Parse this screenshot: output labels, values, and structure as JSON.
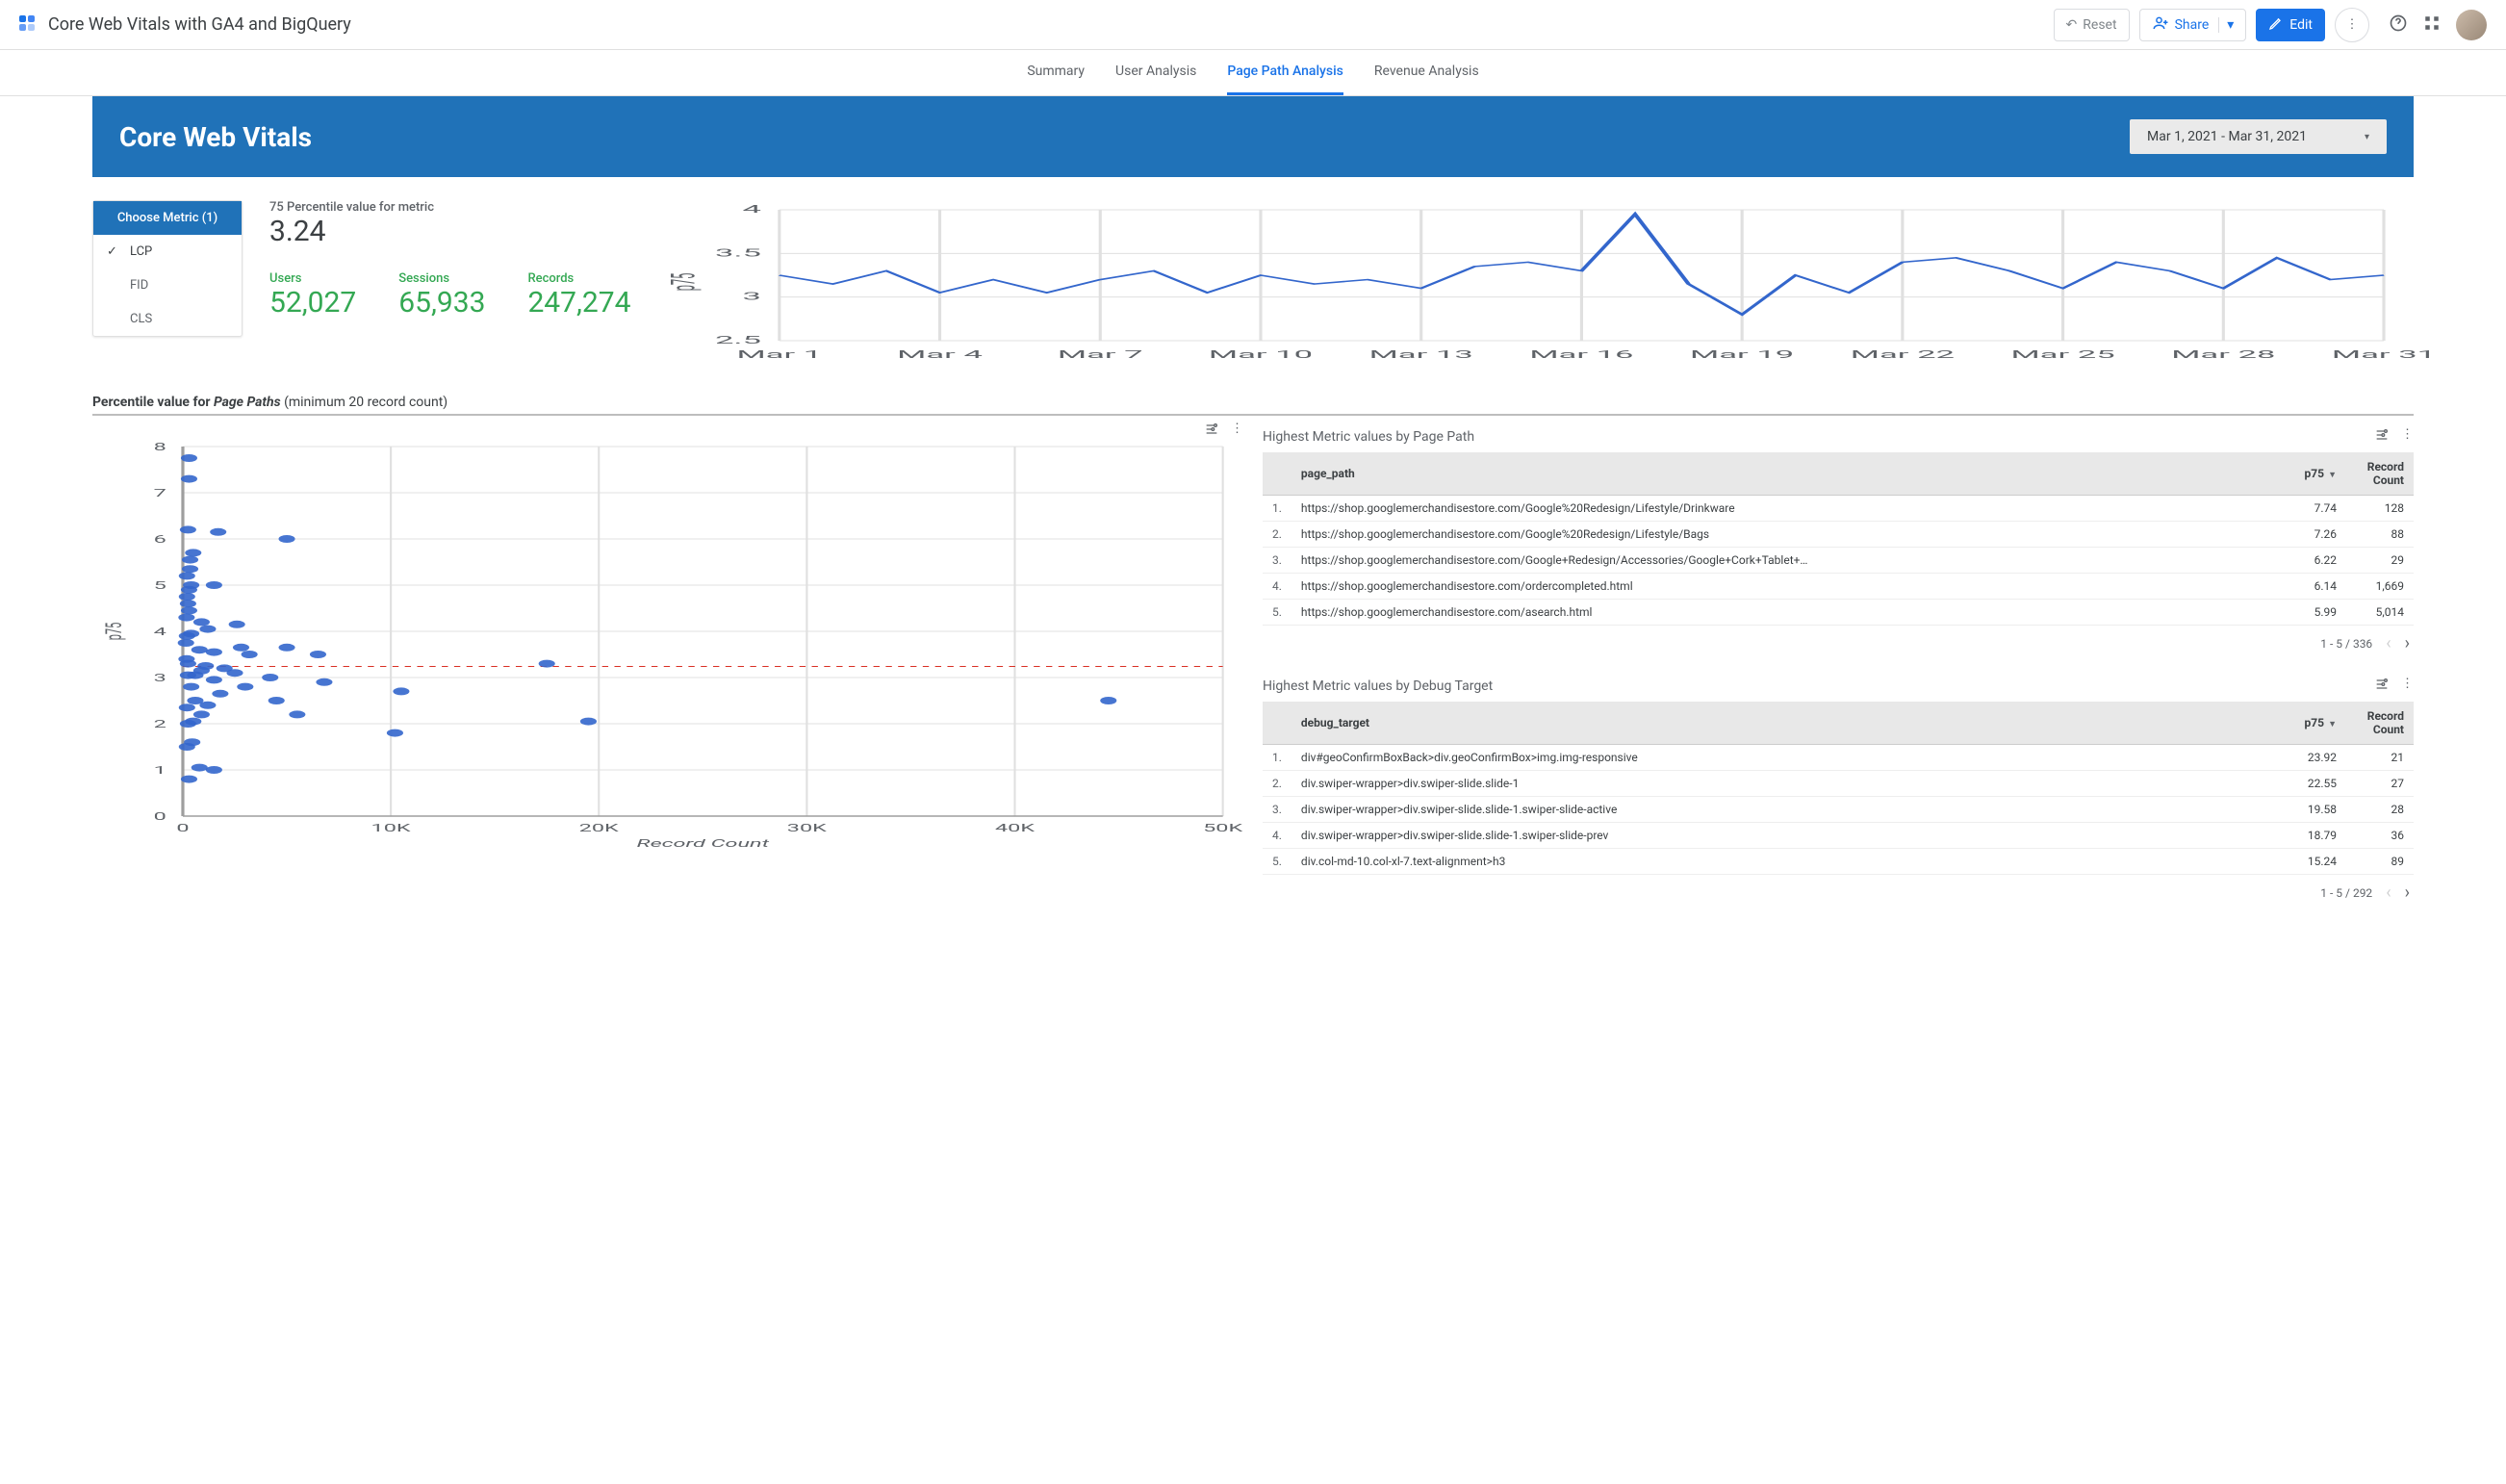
{
  "header": {
    "doc_title": "Core Web Vitals with GA4 and BigQuery",
    "reset": "Reset",
    "share": "Share",
    "edit": "Edit"
  },
  "tabs": {
    "items": [
      "Summary",
      "User Analysis",
      "Page Path Analysis",
      "Revenue Analysis"
    ],
    "active_index": 2
  },
  "hero": {
    "title": "Core Web Vitals",
    "date_range": "Mar 1, 2021 - Mar 31, 2021"
  },
  "metric_picker": {
    "title": "Choose Metric (1)",
    "options": [
      "LCP",
      "FID",
      "CLS"
    ],
    "selected_index": 0
  },
  "scorecards": {
    "p75_label": "75 Percentile value for metric",
    "p75_value": "3.24",
    "users_label": "Users",
    "users_value": "52,027",
    "sessions_label": "Sessions",
    "sessions_value": "65,933",
    "records_label": "Records",
    "records_value": "247,274"
  },
  "line_chart": {
    "type": "line",
    "y_axis_label": "p75",
    "ylim": [
      2.5,
      4.0
    ],
    "yticks": [
      2.5,
      3,
      3.5,
      4
    ],
    "x_labels": [
      "Mar 1",
      "Mar 4",
      "Mar 7",
      "Mar 10",
      "Mar 13",
      "Mar 16",
      "Mar 19",
      "Mar 22",
      "Mar 25",
      "Mar 28",
      "Mar 31"
    ],
    "values": [
      3.25,
      3.15,
      3.3,
      3.05,
      3.2,
      3.05,
      3.2,
      3.3,
      3.05,
      3.25,
      3.15,
      3.2,
      3.1,
      3.35,
      3.4,
      3.3,
      3.95,
      3.15,
      2.8,
      3.25,
      3.05,
      3.4,
      3.45,
      3.3,
      3.1,
      3.4,
      3.3,
      3.1,
      3.45,
      3.2,
      3.25
    ],
    "line_color": "#3366cc",
    "grid_color": "#e0e0e0",
    "background": "#ffffff"
  },
  "section": {
    "caption_prefix": "Percentile value for ",
    "caption_em": "Page Paths",
    "caption_suffix": " (minimum 20 record count)"
  },
  "scatter": {
    "type": "scatter",
    "x_label": "Record Count",
    "y_label": "p75",
    "xlim": [
      0,
      50000
    ],
    "xticks": [
      0,
      10000,
      20000,
      30000,
      40000,
      50000
    ],
    "xtick_labels": [
      "0",
      "10K",
      "20K",
      "30K",
      "40K",
      "50K"
    ],
    "ylim": [
      0,
      8
    ],
    "yticks": [
      0,
      1,
      2,
      3,
      4,
      5,
      6,
      7,
      8
    ],
    "ref_line_y": 3.24,
    "ref_line_color": "#d93025",
    "point_color": "#3366cc",
    "points": [
      [
        300,
        7.75
      ],
      [
        300,
        7.3
      ],
      [
        250,
        6.2
      ],
      [
        1700,
        6.15
      ],
      [
        5000,
        6.0
      ],
      [
        500,
        5.7
      ],
      [
        350,
        5.55
      ],
      [
        200,
        5.2
      ],
      [
        400,
        5.0
      ],
      [
        1500,
        5.0
      ],
      [
        200,
        4.75
      ],
      [
        250,
        4.6
      ],
      [
        300,
        4.45
      ],
      [
        180,
        4.3
      ],
      [
        900,
        4.2
      ],
      [
        2600,
        4.15
      ],
      [
        1200,
        4.05
      ],
      [
        400,
        3.95
      ],
      [
        5000,
        3.65
      ],
      [
        200,
        3.9
      ],
      [
        150,
        3.75
      ],
      [
        800,
        3.6
      ],
      [
        1500,
        3.55
      ],
      [
        180,
        3.4
      ],
      [
        3200,
        3.5
      ],
      [
        6500,
        3.5
      ],
      [
        250,
        3.3
      ],
      [
        17500,
        3.3
      ],
      [
        2500,
        3.1
      ],
      [
        900,
        3.15
      ],
      [
        4200,
        3.0
      ],
      [
        1500,
        2.95
      ],
      [
        6800,
        2.9
      ],
      [
        3000,
        2.8
      ],
      [
        400,
        2.8
      ],
      [
        10500,
        2.7
      ],
      [
        1800,
        2.65
      ],
      [
        600,
        2.5
      ],
      [
        4500,
        2.5
      ],
      [
        44500,
        2.5
      ],
      [
        200,
        2.35
      ],
      [
        900,
        2.2
      ],
      [
        5500,
        2.2
      ],
      [
        19500,
        2.05
      ],
      [
        250,
        2.0
      ],
      [
        10200,
        1.8
      ],
      [
        450,
        1.6
      ],
      [
        200,
        1.5
      ],
      [
        1500,
        1.0
      ],
      [
        300,
        0.8
      ],
      [
        600,
        3.05
      ],
      [
        300,
        4.9
      ],
      [
        350,
        5.35
      ],
      [
        250,
        3.05
      ],
      [
        1100,
        3.25
      ],
      [
        2000,
        3.2
      ],
      [
        500,
        2.05
      ],
      [
        800,
        1.05
      ],
      [
        2800,
        3.65
      ],
      [
        1200,
        2.4
      ]
    ]
  },
  "table_pagepath": {
    "title": "Highest Metric values by Page Path",
    "columns": [
      "page_path",
      "p75",
      "Record Count"
    ],
    "rows": [
      [
        "https://shop.googlemerchandisestore.com/Google%20Redesign/Lifestyle/Drinkware",
        "7.74",
        "128"
      ],
      [
        "https://shop.googlemerchandisestore.com/Google%20Redesign/Lifestyle/Bags",
        "7.26",
        "88"
      ],
      [
        "https://shop.googlemerchandisestore.com/Google+Redesign/Accessories/Google+Cork+Tablet+…",
        "6.22",
        "29"
      ],
      [
        "https://shop.googlemerchandisestore.com/ordercompleted.html",
        "6.14",
        "1,669"
      ],
      [
        "https://shop.googlemerchandisestore.com/asearch.html",
        "5.99",
        "5,014"
      ]
    ],
    "pager": "1 - 5 / 336"
  },
  "table_debug": {
    "title": "Highest Metric values by Debug Target",
    "columns": [
      "debug_target",
      "p75",
      "Record Count"
    ],
    "rows": [
      [
        "div#geoConfirmBoxBack>div.geoConfirmBox>img.img-responsive",
        "23.92",
        "21"
      ],
      [
        "div.swiper-wrapper>div.swiper-slide.slide-1",
        "22.55",
        "27"
      ],
      [
        "div.swiper-wrapper>div.swiper-slide.slide-1.swiper-slide-active",
        "19.58",
        "28"
      ],
      [
        "div.swiper-wrapper>div.swiper-slide.slide-1.swiper-slide-prev",
        "18.79",
        "36"
      ],
      [
        "div.col-md-10.col-xl-7.text-alignment>h3",
        "15.24",
        "89"
      ]
    ],
    "pager": "1 - 5 / 292"
  },
  "colors": {
    "brand_blue": "#2072b8",
    "accent_blue": "#1a73e8",
    "green": "#34a853",
    "grid": "#e0e0e0",
    "text_muted": "#5f6368"
  }
}
